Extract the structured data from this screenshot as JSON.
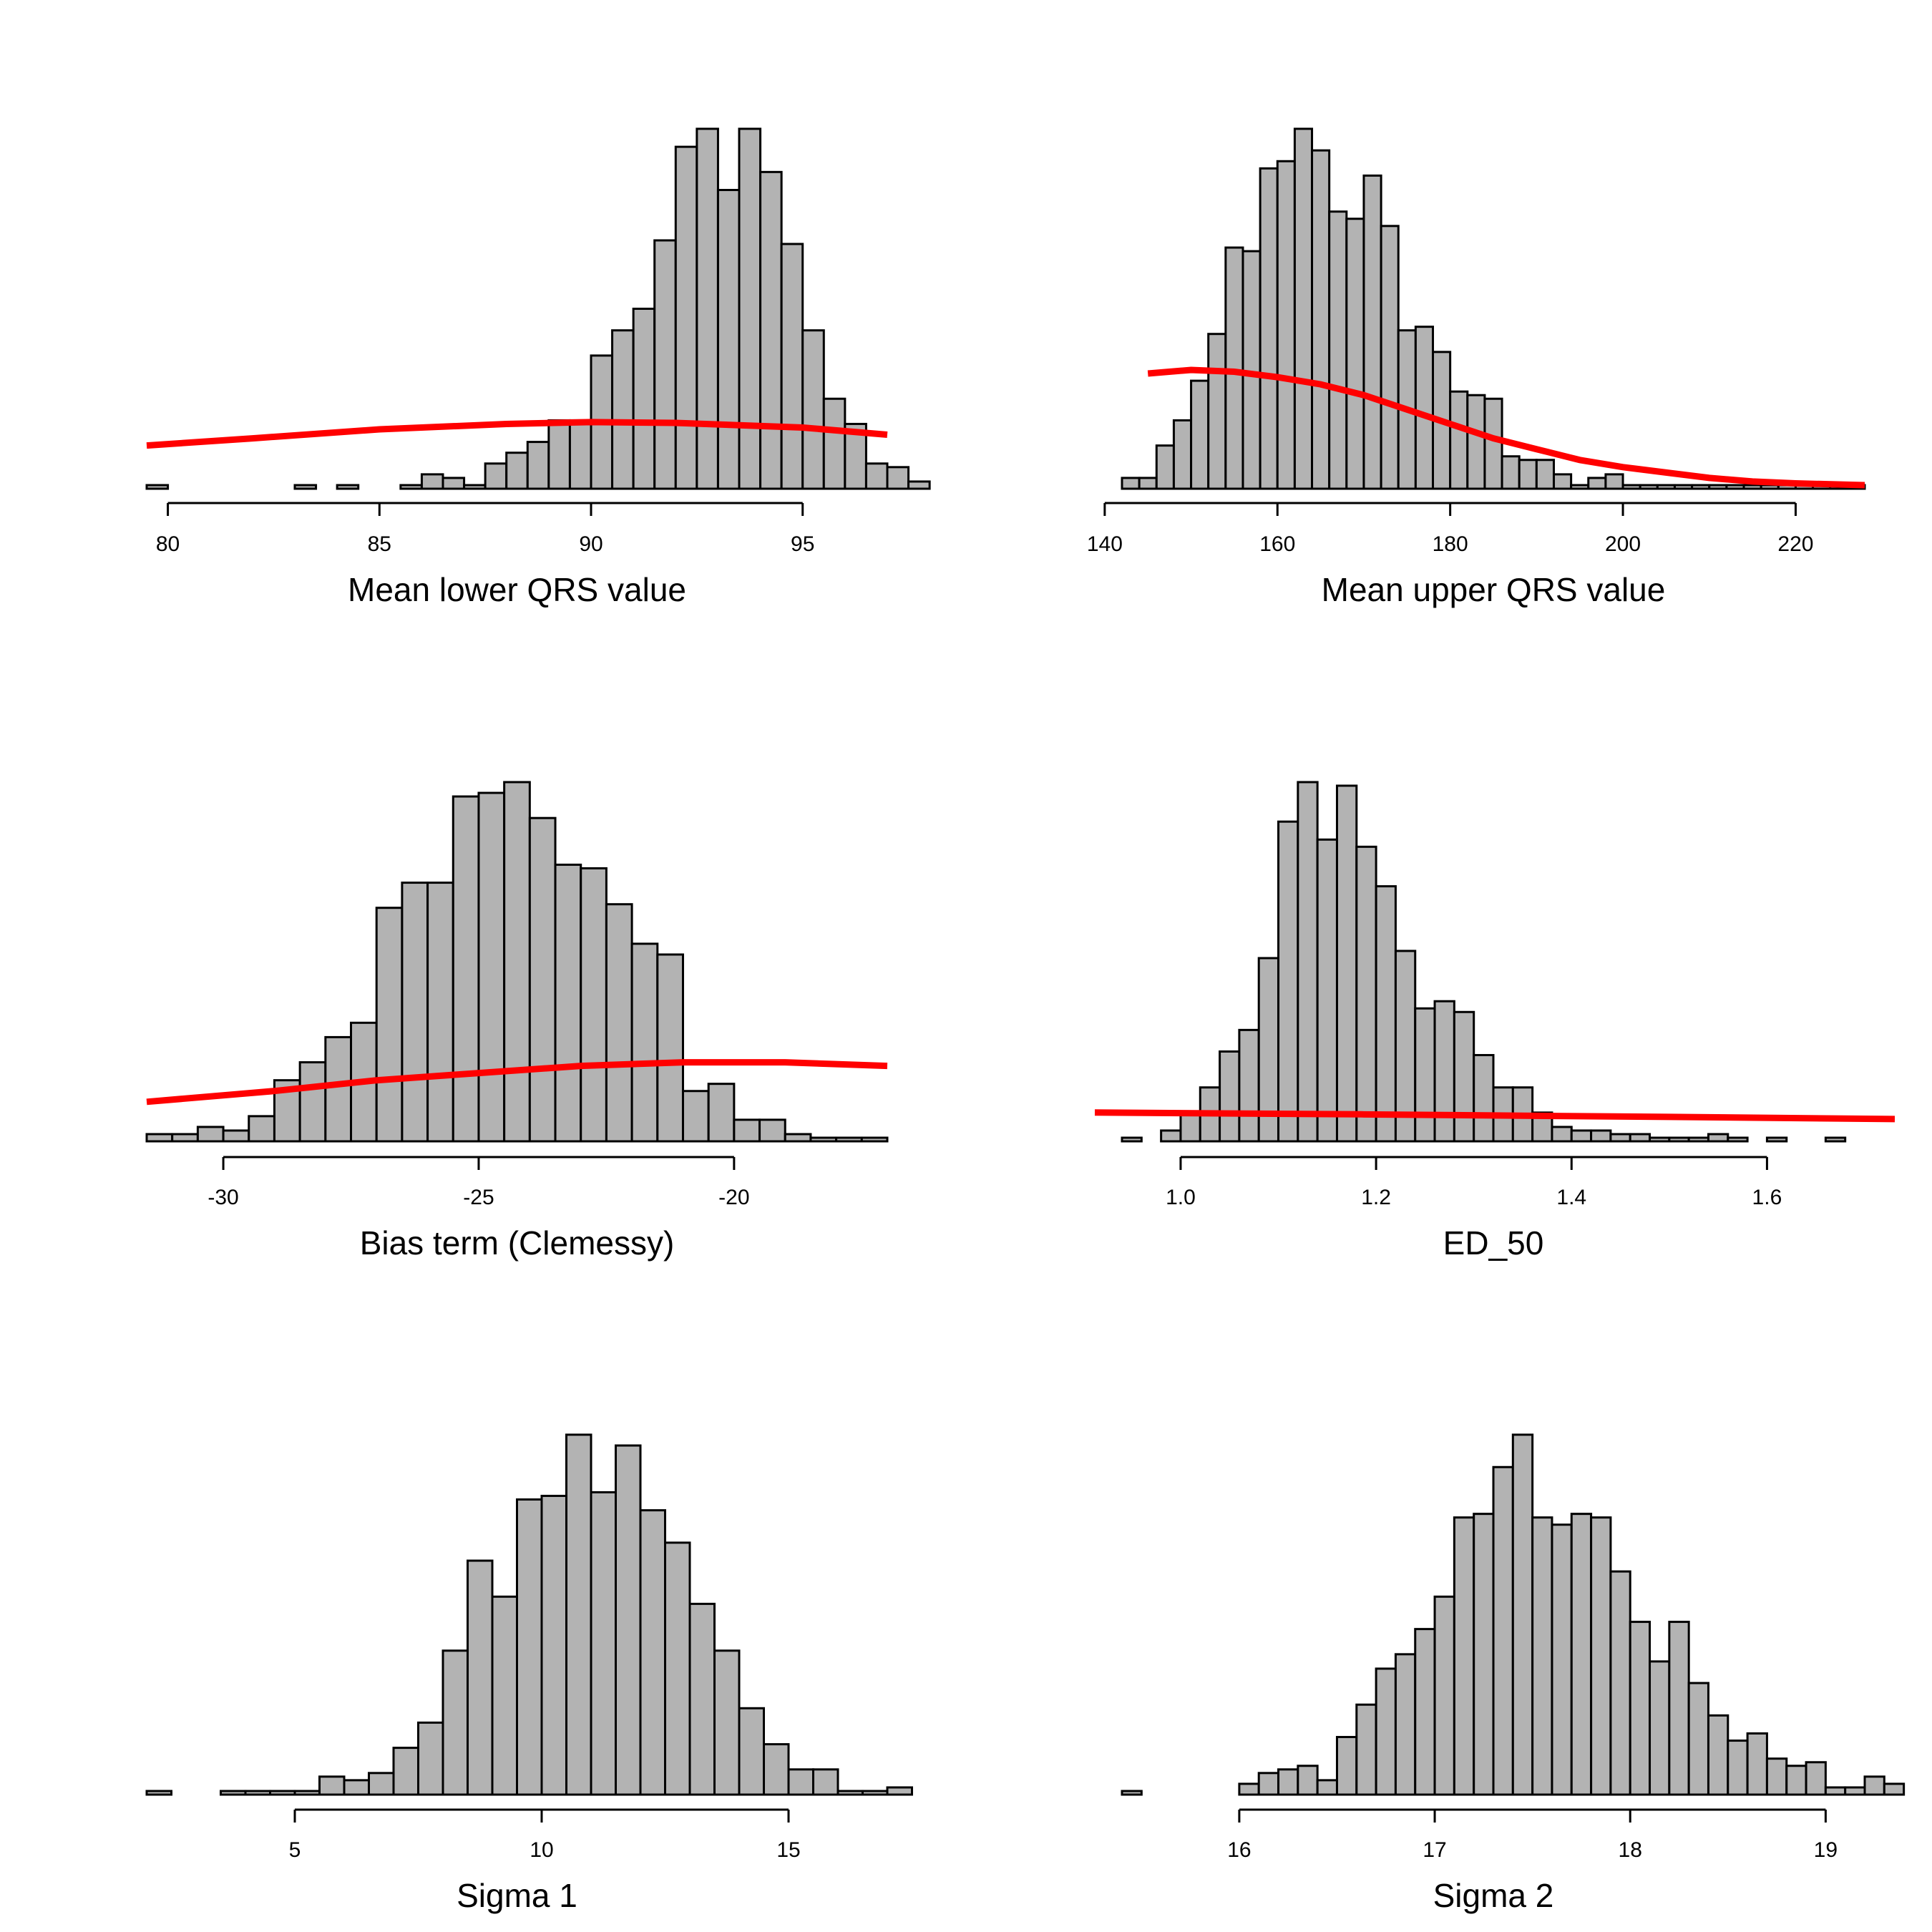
{
  "chart_data": [
    {
      "type": "histogram",
      "xlabel": "Mean lower QRS value",
      "x_range": [
        79.5,
        97
      ],
      "ticks": [
        80,
        85,
        90,
        95
      ],
      "tick_labels": [
        "80",
        "85",
        "90",
        "95"
      ],
      "bin_start": 79.5,
      "bin_width": 0.5,
      "bar_heights": [
        0.01,
        0,
        0,
        0,
        0,
        0,
        0,
        0.01,
        0,
        0.01,
        0,
        0,
        0.01,
        0.04,
        0.03,
        0.01,
        0.07,
        0.1,
        0.13,
        0.19,
        0.19,
        0.37,
        0.44,
        0.5,
        0.69,
        0.95,
        1.0,
        0.83,
        1.0,
        0.88,
        0.68,
        0.44,
        0.25,
        0.18,
        0.07,
        0.06,
        0.02
      ],
      "height_scale": "fraction of tallest bar",
      "prior_curve": {
        "x": [
          79.5,
          82,
          85,
          88,
          90,
          92,
          95,
          97
        ],
        "y": [
          0.12,
          0.14,
          0.165,
          0.18,
          0.185,
          0.183,
          0.17,
          0.15
        ],
        "color": "#ff0000"
      }
    },
    {
      "type": "histogram",
      "xlabel": "Mean upper QRS value",
      "x_range": [
        142,
        228
      ],
      "ticks": [
        140,
        160,
        180,
        200,
        220
      ],
      "tick_labels": [
        "140",
        "160",
        "180",
        "200",
        "220"
      ],
      "bin_start": 142,
      "bin_width": 2,
      "bar_heights": [
        0.03,
        0.03,
        0.12,
        0.19,
        0.3,
        0.43,
        0.67,
        0.66,
        0.89,
        0.91,
        1.0,
        0.94,
        0.77,
        0.75,
        0.87,
        0.73,
        0.44,
        0.45,
        0.38,
        0.27,
        0.26,
        0.25,
        0.09,
        0.08,
        0.08,
        0.04,
        0.01,
        0.03,
        0.04,
        0.01,
        0.01,
        0.01,
        0.01,
        0.01,
        0.01,
        0.01,
        0.01,
        0.01,
        0.01,
        0.01,
        0.01,
        0.01,
        0.01
      ],
      "height_scale": "fraction of tallest bar",
      "prior_curve": {
        "x": [
          145,
          150,
          155,
          160,
          165,
          170,
          175,
          180,
          185,
          190,
          195,
          200,
          205,
          210,
          215,
          220,
          228
        ],
        "y": [
          0.32,
          0.33,
          0.325,
          0.31,
          0.29,
          0.26,
          0.22,
          0.18,
          0.14,
          0.11,
          0.08,
          0.06,
          0.045,
          0.03,
          0.02,
          0.015,
          0.01
        ],
        "color": "#ff0000"
      }
    },
    {
      "type": "histogram",
      "xlabel": "Bias term (Clemessy)",
      "x_range": [
        -31.5,
        -17
      ],
      "ticks": [
        -30,
        -25,
        -20
      ],
      "tick_labels": [
        "-30",
        "-25",
        "-20"
      ],
      "bin_start": -31.5,
      "bin_width": 0.5,
      "bar_heights": [
        0.02,
        0.02,
        0.04,
        0.03,
        0.07,
        0.17,
        0.22,
        0.29,
        0.33,
        0.65,
        0.72,
        0.72,
        0.96,
        0.97,
        1.0,
        0.9,
        0.77,
        0.76,
        0.66,
        0.55,
        0.52,
        0.14,
        0.16,
        0.06,
        0.06,
        0.02,
        0.01,
        0.01,
        0.01
      ],
      "height_scale": "fraction of tallest bar",
      "prior_curve": {
        "x": [
          -31.5,
          -29,
          -27,
          -25,
          -23,
          -21,
          -19,
          -17
        ],
        "y": [
          0.11,
          0.14,
          0.17,
          0.19,
          0.21,
          0.22,
          0.22,
          0.21
        ],
        "color": "#ff0000"
      }
    },
    {
      "type": "histogram",
      "xlabel": "ED_50",
      "x_range": [
        0.94,
        1.7
      ],
      "ticks": [
        1.0,
        1.2,
        1.4,
        1.6
      ],
      "tick_labels": [
        "1.0",
        "1.2",
        "1.4",
        "1.6"
      ],
      "bin_start": 0.94,
      "bin_width": 0.02,
      "bar_heights": [
        0.01,
        0,
        0.03,
        0.08,
        0.15,
        0.25,
        0.31,
        0.51,
        0.89,
        1.0,
        0.84,
        0.99,
        0.82,
        0.71,
        0.53,
        0.37,
        0.39,
        0.36,
        0.24,
        0.15,
        0.15,
        0.08,
        0.04,
        0.03,
        0.03,
        0.02,
        0.02,
        0.01,
        0.01,
        0.01,
        0.02,
        0.01,
        0,
        0.01,
        0,
        0,
        0.01,
        0,
        0
      ],
      "height_scale": "fraction of tallest bar",
      "prior_curve": {
        "x": [
          0.94,
          1.2,
          1.5,
          1.72
        ],
        "y": [
          0.08,
          0.075,
          0.068,
          0.062
        ],
        "color": "#ff0000"
      }
    },
    {
      "type": "histogram",
      "xlabel": "Sigma 1",
      "x_range": [
        2,
        17
      ],
      "ticks": [
        5,
        10,
        15
      ],
      "tick_labels": [
        "5",
        "10",
        "15"
      ],
      "bin_start": 2,
      "bin_width": 0.5,
      "bar_heights": [
        0.01,
        0,
        0,
        0.01,
        0.01,
        0.01,
        0.01,
        0.05,
        0.04,
        0.06,
        0.13,
        0.2,
        0.4,
        0.65,
        0.55,
        0.82,
        0.83,
        1.0,
        0.84,
        0.97,
        0.79,
        0.7,
        0.53,
        0.4,
        0.24,
        0.14,
        0.07,
        0.07,
        0.01,
        0.01,
        0.02
      ],
      "height_scale": "fraction of tallest bar"
    },
    {
      "type": "histogram",
      "xlabel": "Sigma 2",
      "x_range": [
        15.4,
        19.2
      ],
      "ticks": [
        16,
        17,
        18,
        19
      ],
      "tick_labels": [
        "16",
        "17",
        "18",
        "19"
      ],
      "bin_start": 15.4,
      "bin_width": 0.1,
      "bar_heights": [
        0.01,
        0,
        0,
        0,
        0,
        0,
        0.03,
        0.06,
        0.07,
        0.08,
        0.04,
        0.16,
        0.25,
        0.35,
        0.39,
        0.46,
        0.55,
        0.77,
        0.78,
        0.91,
        1.0,
        0.77,
        0.75,
        0.78,
        0.77,
        0.62,
        0.48,
        0.37,
        0.48,
        0.31,
        0.22,
        0.15,
        0.17,
        0.1,
        0.08,
        0.09,
        0.02,
        0.02,
        0.05,
        0.03
      ],
      "height_scale": "fraction of tallest bar"
    }
  ]
}
